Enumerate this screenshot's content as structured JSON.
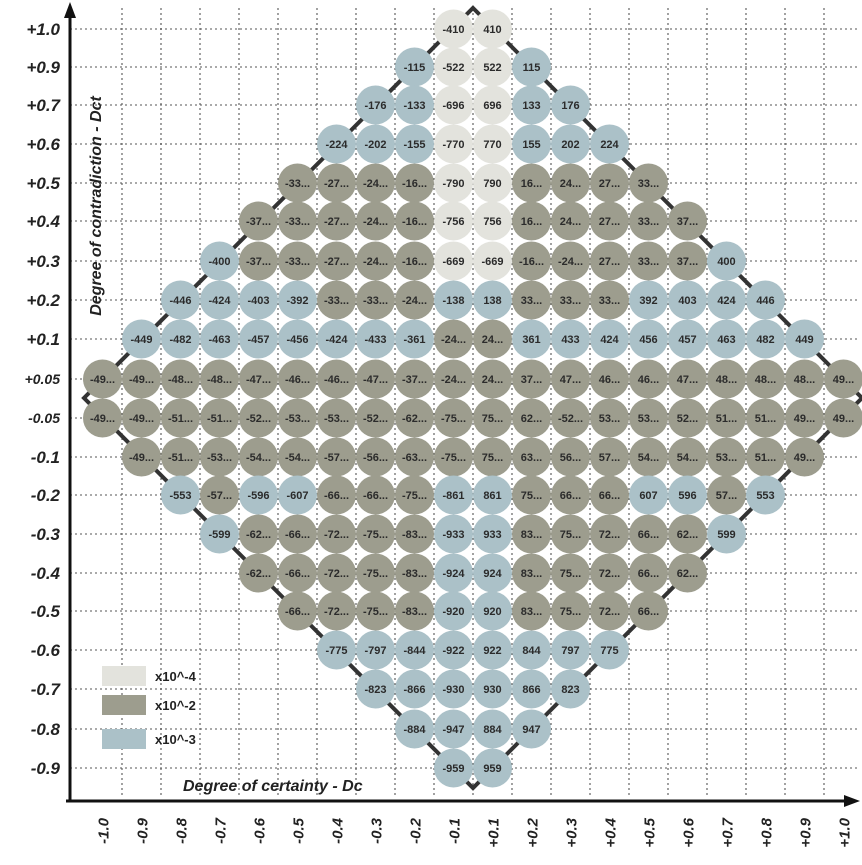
{
  "chart_data": {
    "type": "heatmap",
    "xlabel": "Degree of certainty - Dc",
    "ylabel": "Degree of contradiction - Dct",
    "grid": true,
    "x_ticks": [
      "-1.0",
      "-0.9",
      "-0.8",
      "-0.7",
      "-0.6",
      "-0.5",
      "-0.4",
      "-0.3",
      "-0.2",
      "-0.1",
      "+0.1",
      "+0.2",
      "+0.3",
      "+0.4",
      "+0.5",
      "+0.6",
      "+0.7",
      "+0.8",
      "+0.9",
      "+1.0"
    ],
    "y_ticks": [
      "+1.0",
      "+0.9",
      "+0.7",
      "+0.6",
      "+0.5",
      "+0.4",
      "+0.3",
      "+0.2",
      "+0.1",
      "+0.05",
      "-0.05",
      "-0.1",
      "-0.2",
      "-0.3",
      "-0.4",
      "-0.5",
      "-0.6",
      "-0.7",
      "-0.8",
      "-0.9"
    ],
    "scales": [
      {
        "key": "e4",
        "label": "x10^-4",
        "color": "#e3e3dd"
      },
      {
        "key": "e2",
        "label": "x10^-2",
        "color": "#9d9d8e"
      },
      {
        "key": "e3",
        "label": "x10^-3",
        "color": "#abc1c8"
      }
    ],
    "rows": [
      {
        "y": "+1.0",
        "start": 9,
        "cells": [
          [
            "-410",
            "e4"
          ],
          [
            "410",
            "e4"
          ]
        ]
      },
      {
        "y": "+0.9",
        "start": 8,
        "cells": [
          [
            "-115",
            "e3"
          ],
          [
            "-522",
            "e4"
          ],
          [
            "522",
            "e4"
          ],
          [
            "115",
            "e3"
          ]
        ]
      },
      {
        "y": "+0.7",
        "start": 7,
        "cells": [
          [
            "-176",
            "e3"
          ],
          [
            "-133",
            "e3"
          ],
          [
            "-696",
            "e4"
          ],
          [
            "696",
            "e4"
          ],
          [
            "133",
            "e3"
          ],
          [
            "176",
            "e3"
          ]
        ]
      },
      {
        "y": "+0.6",
        "start": 6,
        "cells": [
          [
            "-224",
            "e3"
          ],
          [
            "-202",
            "e3"
          ],
          [
            "-155",
            "e3"
          ],
          [
            "-770",
            "e4"
          ],
          [
            "770",
            "e4"
          ],
          [
            "155",
            "e3"
          ],
          [
            "202",
            "e3"
          ],
          [
            "224",
            "e3"
          ]
        ]
      },
      {
        "y": "+0.5",
        "start": 5,
        "cells": [
          [
            "-33...",
            "e2"
          ],
          [
            "-27...",
            "e2"
          ],
          [
            "-24...",
            "e2"
          ],
          [
            "-16...",
            "e2"
          ],
          [
            "-790",
            "e4"
          ],
          [
            "790",
            "e4"
          ],
          [
            "16...",
            "e2"
          ],
          [
            "24...",
            "e2"
          ],
          [
            "27...",
            "e2"
          ],
          [
            "33...",
            "e2"
          ]
        ]
      },
      {
        "y": "+0.4",
        "start": 4,
        "cells": [
          [
            "-37...",
            "e2"
          ],
          [
            "-33...",
            "e2"
          ],
          [
            "-27...",
            "e2"
          ],
          [
            "-24...",
            "e2"
          ],
          [
            "-16...",
            "e2"
          ],
          [
            "-756",
            "e4"
          ],
          [
            "756",
            "e4"
          ],
          [
            "16...",
            "e2"
          ],
          [
            "24...",
            "e2"
          ],
          [
            "27...",
            "e2"
          ],
          [
            "33...",
            "e2"
          ],
          [
            "37...",
            "e2"
          ]
        ]
      },
      {
        "y": "+0.3",
        "start": 3,
        "cells": [
          [
            "-400",
            "e3"
          ],
          [
            "-37...",
            "e2"
          ],
          [
            "-33...",
            "e2"
          ],
          [
            "-27...",
            "e2"
          ],
          [
            "-24...",
            "e2"
          ],
          [
            "-16...",
            "e2"
          ],
          [
            "-669",
            "e4"
          ],
          [
            "-669",
            "e4"
          ],
          [
            "-16...",
            "e2"
          ],
          [
            "-24...",
            "e2"
          ],
          [
            "27...",
            "e2"
          ],
          [
            "33...",
            "e2"
          ],
          [
            "37...",
            "e2"
          ],
          [
            "400",
            "e3"
          ]
        ]
      },
      {
        "y": "+0.2",
        "start": 2,
        "cells": [
          [
            "-446",
            "e3"
          ],
          [
            "-424",
            "e3"
          ],
          [
            "-403",
            "e3"
          ],
          [
            "-392",
            "e3"
          ],
          [
            "-33...",
            "e2"
          ],
          [
            "-33...",
            "e2"
          ],
          [
            "-24...",
            "e2"
          ],
          [
            "-138",
            "e3"
          ],
          [
            "138",
            "e3"
          ],
          [
            "33...",
            "e2"
          ],
          [
            "33...",
            "e2"
          ],
          [
            "33...",
            "e2"
          ],
          [
            "392",
            "e3"
          ],
          [
            "403",
            "e3"
          ],
          [
            "424",
            "e3"
          ],
          [
            "446",
            "e3"
          ]
        ]
      },
      {
        "y": "+0.1",
        "start": 1,
        "cells": [
          [
            "-449",
            "e3"
          ],
          [
            "-482",
            "e3"
          ],
          [
            "-463",
            "e3"
          ],
          [
            "-457",
            "e3"
          ],
          [
            "-456",
            "e3"
          ],
          [
            "-424",
            "e3"
          ],
          [
            "-433",
            "e3"
          ],
          [
            "-361",
            "e3"
          ],
          [
            "-24...",
            "e2"
          ],
          [
            "24...",
            "e2"
          ],
          [
            "361",
            "e3"
          ],
          [
            "433",
            "e3"
          ],
          [
            "424",
            "e3"
          ],
          [
            "456",
            "e3"
          ],
          [
            "457",
            "e3"
          ],
          [
            "463",
            "e3"
          ],
          [
            "482",
            "e3"
          ],
          [
            "449",
            "e3"
          ]
        ]
      },
      {
        "y": "+0.05",
        "start": 0,
        "cells": [
          [
            "-49...",
            "e2"
          ],
          [
            "-49...",
            "e2"
          ],
          [
            "-48...",
            "e2"
          ],
          [
            "-48...",
            "e2"
          ],
          [
            "-47...",
            "e2"
          ],
          [
            "-46...",
            "e2"
          ],
          [
            "-46...",
            "e2"
          ],
          [
            "-47...",
            "e2"
          ],
          [
            "-37...",
            "e2"
          ],
          [
            "-24...",
            "e2"
          ],
          [
            "24...",
            "e2"
          ],
          [
            "37...",
            "e2"
          ],
          [
            "47...",
            "e2"
          ],
          [
            "46...",
            "e2"
          ],
          [
            "46...",
            "e2"
          ],
          [
            "47...",
            "e2"
          ],
          [
            "48...",
            "e2"
          ],
          [
            "48...",
            "e2"
          ],
          [
            "48...",
            "e2"
          ],
          [
            "49...",
            "e2"
          ]
        ]
      },
      {
        "y": "-0.05",
        "start": 0,
        "cells": [
          [
            "-49...",
            "e2"
          ],
          [
            "-49...",
            "e2"
          ],
          [
            "-51...",
            "e2"
          ],
          [
            "-51...",
            "e2"
          ],
          [
            "-52...",
            "e2"
          ],
          [
            "-53...",
            "e2"
          ],
          [
            "-53...",
            "e2"
          ],
          [
            "-52...",
            "e2"
          ],
          [
            "-62...",
            "e2"
          ],
          [
            "-75...",
            "e2"
          ],
          [
            "75...",
            "e2"
          ],
          [
            "62...",
            "e2"
          ],
          [
            "-52...",
            "e2"
          ],
          [
            "53...",
            "e2"
          ],
          [
            "53...",
            "e2"
          ],
          [
            "52...",
            "e2"
          ],
          [
            "51...",
            "e2"
          ],
          [
            "51...",
            "e2"
          ],
          [
            "49...",
            "e2"
          ],
          [
            "49...",
            "e2"
          ]
        ]
      },
      {
        "y": "-0.1",
        "start": 1,
        "cells": [
          [
            "-49...",
            "e2"
          ],
          [
            "-51...",
            "e2"
          ],
          [
            "-53...",
            "e2"
          ],
          [
            "-54...",
            "e2"
          ],
          [
            "-54...",
            "e2"
          ],
          [
            "-57...",
            "e2"
          ],
          [
            "-56...",
            "e2"
          ],
          [
            "-63...",
            "e2"
          ],
          [
            "-75...",
            "e2"
          ],
          [
            "75...",
            "e2"
          ],
          [
            "63...",
            "e2"
          ],
          [
            "56...",
            "e2"
          ],
          [
            "57...",
            "e2"
          ],
          [
            "54...",
            "e2"
          ],
          [
            "54...",
            "e2"
          ],
          [
            "53...",
            "e2"
          ],
          [
            "51...",
            "e2"
          ],
          [
            "49...",
            "e2"
          ]
        ]
      },
      {
        "y": "-0.2",
        "start": 2,
        "cells": [
          [
            "-553",
            "e3"
          ],
          [
            "-57...",
            "e2"
          ],
          [
            "-596",
            "e3"
          ],
          [
            "-607",
            "e3"
          ],
          [
            "-66...",
            "e2"
          ],
          [
            "-66...",
            "e2"
          ],
          [
            "-75...",
            "e2"
          ],
          [
            "-861",
            "e3"
          ],
          [
            "861",
            "e3"
          ],
          [
            "75...",
            "e2"
          ],
          [
            "66...",
            "e2"
          ],
          [
            "66...",
            "e2"
          ],
          [
            "607",
            "e3"
          ],
          [
            "596",
            "e3"
          ],
          [
            "57...",
            "e2"
          ],
          [
            "553",
            "e3"
          ]
        ]
      },
      {
        "y": "-0.3",
        "start": 3,
        "cells": [
          [
            "-599",
            "e3"
          ],
          [
            "-62...",
            "e2"
          ],
          [
            "-66...",
            "e2"
          ],
          [
            "-72...",
            "e2"
          ],
          [
            "-75...",
            "e2"
          ],
          [
            "-83...",
            "e2"
          ],
          [
            "-933",
            "e3"
          ],
          [
            "933",
            "e3"
          ],
          [
            "83...",
            "e2"
          ],
          [
            "75...",
            "e2"
          ],
          [
            "72...",
            "e2"
          ],
          [
            "66...",
            "e2"
          ],
          [
            "62...",
            "e2"
          ],
          [
            "599",
            "e3"
          ]
        ]
      },
      {
        "y": "-0.4",
        "start": 4,
        "cells": [
          [
            "-62...",
            "e2"
          ],
          [
            "-66...",
            "e2"
          ],
          [
            "-72...",
            "e2"
          ],
          [
            "-75...",
            "e2"
          ],
          [
            "-83...",
            "e2"
          ],
          [
            "-924",
            "e3"
          ],
          [
            "924",
            "e3"
          ],
          [
            "83...",
            "e2"
          ],
          [
            "75...",
            "e2"
          ],
          [
            "72...",
            "e2"
          ],
          [
            "66...",
            "e2"
          ],
          [
            "62...",
            "e2"
          ]
        ]
      },
      {
        "y": "-0.5",
        "start": 5,
        "cells": [
          [
            "-66...",
            "e2"
          ],
          [
            "-72...",
            "e2"
          ],
          [
            "-75...",
            "e2"
          ],
          [
            "-83...",
            "e2"
          ],
          [
            "-920",
            "e3"
          ],
          [
            "920",
            "e3"
          ],
          [
            "83...",
            "e2"
          ],
          [
            "75...",
            "e2"
          ],
          [
            "72...",
            "e2"
          ],
          [
            "66...",
            "e2"
          ]
        ]
      },
      {
        "y": "-0.6",
        "start": 6,
        "cells": [
          [
            "-775",
            "e3"
          ],
          [
            "-797",
            "e3"
          ],
          [
            "-844",
            "e3"
          ],
          [
            "-922",
            "e3"
          ],
          [
            "922",
            "e3"
          ],
          [
            "844",
            "e3"
          ],
          [
            "797",
            "e3"
          ],
          [
            "775",
            "e3"
          ]
        ]
      },
      {
        "y": "-0.7",
        "start": 7,
        "cells": [
          [
            "-823",
            "e3"
          ],
          [
            "-866",
            "e3"
          ],
          [
            "-930",
            "e3"
          ],
          [
            "930",
            "e3"
          ],
          [
            "866",
            "e3"
          ],
          [
            "823",
            "e3"
          ]
        ]
      },
      {
        "y": "-0.8",
        "start": 8,
        "cells": [
          [
            "-884",
            "e3"
          ],
          [
            "-947",
            "e3"
          ],
          [
            "884",
            "e3"
          ],
          [
            "947",
            "e3"
          ]
        ]
      },
      {
        "y": "-0.9",
        "start": 9,
        "cells": [
          [
            "-959",
            "e3"
          ],
          [
            "959",
            "e3"
          ]
        ]
      }
    ]
  }
}
